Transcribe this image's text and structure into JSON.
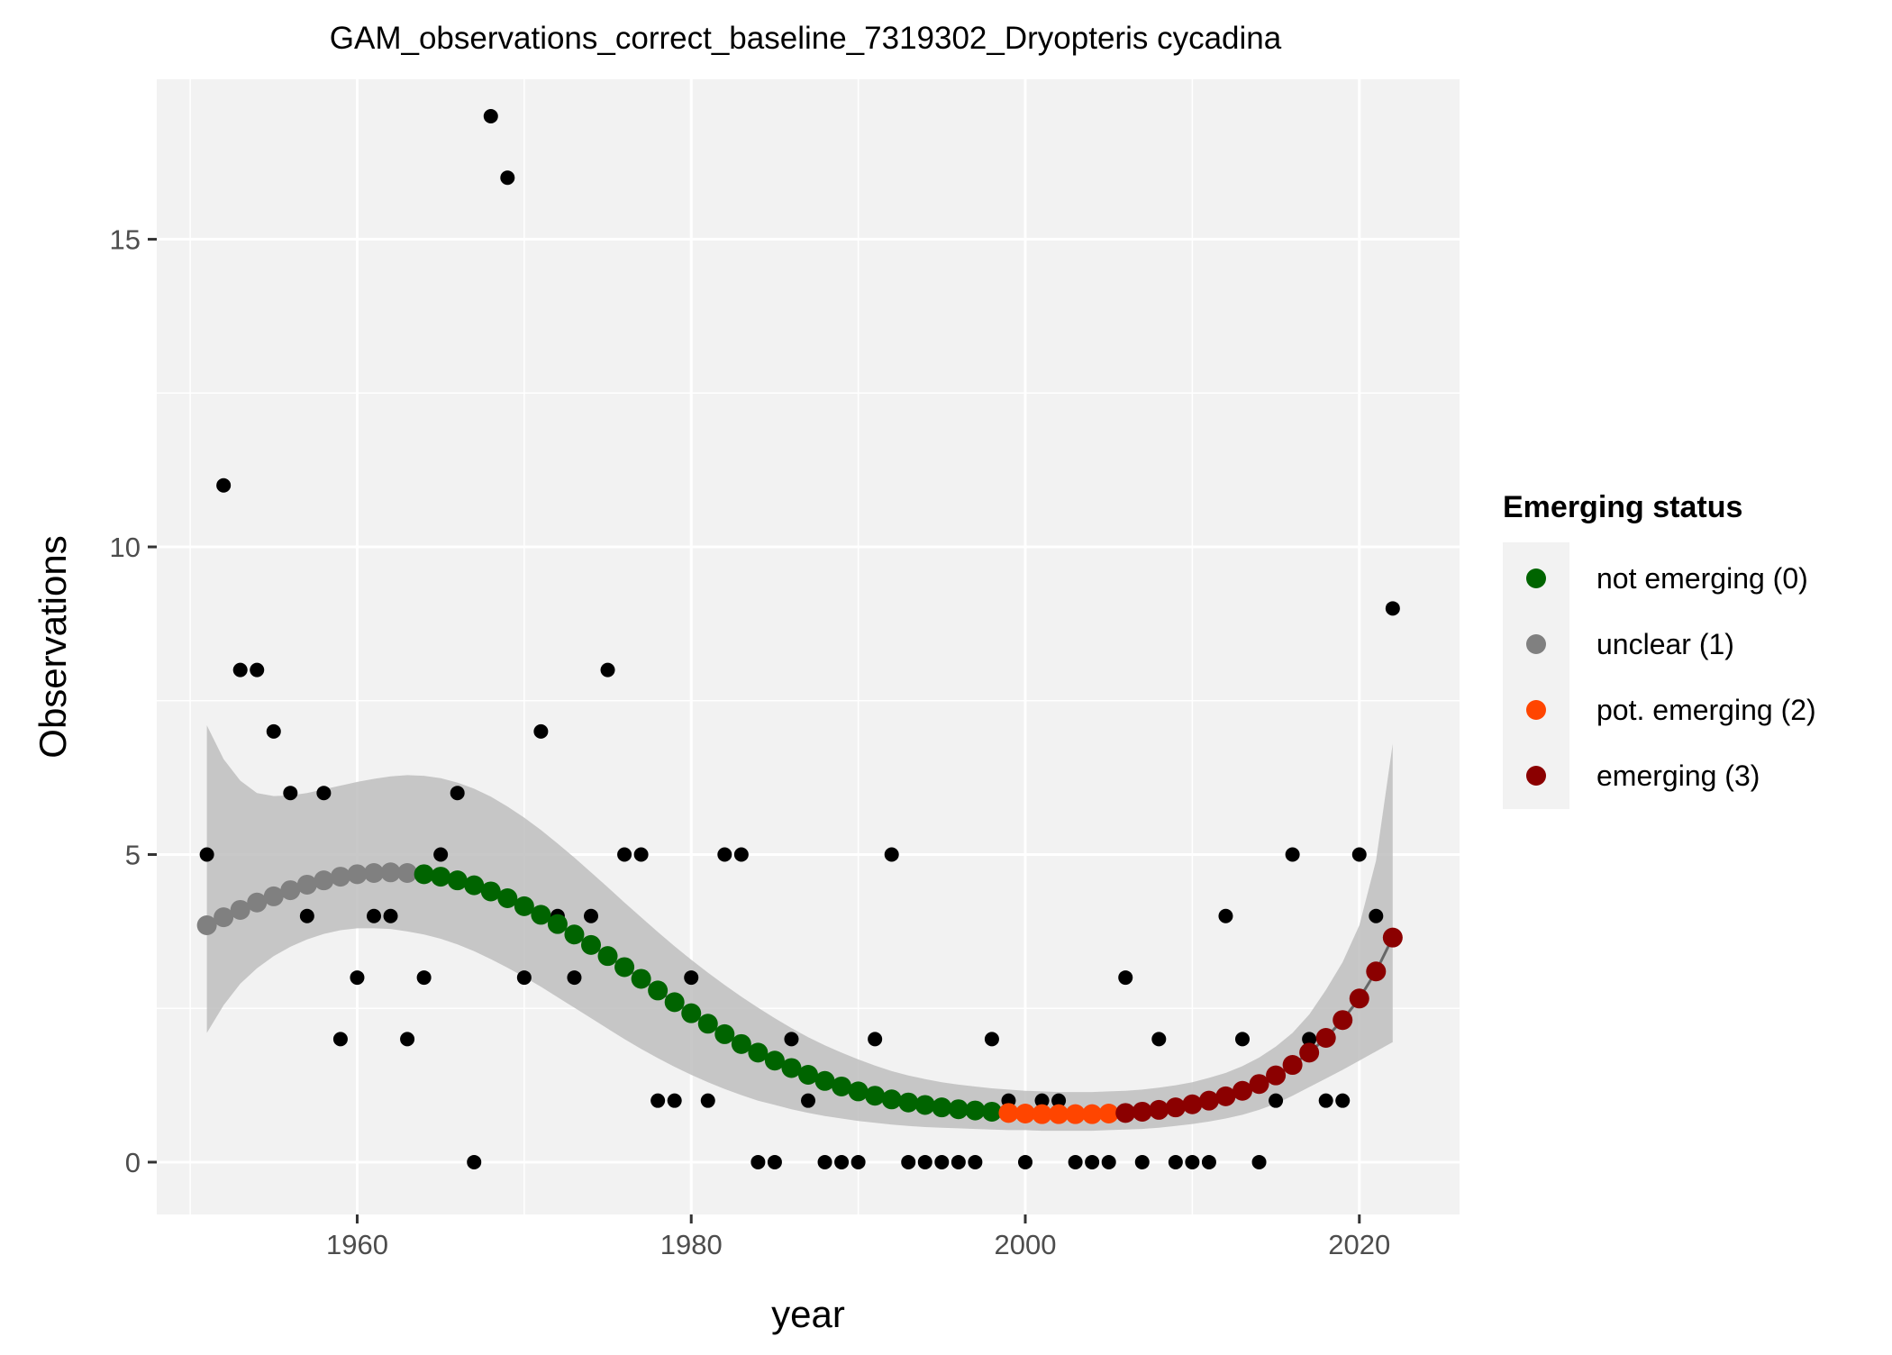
{
  "chart_data": {
    "type": "scatter",
    "title": "GAM_observations_correct_baseline_7319302_Dryopteris cycadina",
    "xlabel": "year",
    "ylabel": "Observations",
    "xlim": [
      1948,
      2026
    ],
    "ylim": [
      -0.85,
      17.6
    ],
    "x_ticks": [
      1960,
      1980,
      2000,
      2020
    ],
    "y_ticks": [
      0,
      5,
      10,
      15
    ],
    "x_minor_ticks": [
      1950,
      1970,
      1990,
      2010
    ],
    "y_minor_ticks": [
      2.5,
      7.5,
      12.5
    ],
    "grid": true,
    "panel_background": "#f2f2f2",
    "legend": {
      "title": "Emerging status",
      "position": "right",
      "entries": [
        {
          "label": "not emerging (0)",
          "color": "#006400"
        },
        {
          "label": "unclear (1)",
          "color": "#808080"
        },
        {
          "label": "pot. emerging (2)",
          "color": "#ff4500"
        },
        {
          "label": "emerging (3)",
          "color": "#8b0000"
        }
      ]
    },
    "series": [
      {
        "role": "observations",
        "color": "#000000",
        "x": [
          1951,
          1952,
          1953,
          1954,
          1955,
          1956,
          1957,
          1958,
          1959,
          1960,
          1961,
          1962,
          1963,
          1964,
          1965,
          1966,
          1967,
          1968,
          1969,
          1970,
          1971,
          1972,
          1973,
          1974,
          1975,
          1976,
          1977,
          1978,
          1979,
          1980,
          1981,
          1982,
          1983,
          1984,
          1985,
          1986,
          1987,
          1988,
          1989,
          1990,
          1991,
          1992,
          1993,
          1994,
          1995,
          1996,
          1997,
          1998,
          1999,
          2000,
          2001,
          2002,
          2003,
          2004,
          2005,
          2006,
          2007,
          2008,
          2009,
          2010,
          2011,
          2012,
          2013,
          2014,
          2015,
          2016,
          2017,
          2018,
          2019,
          2020,
          2021,
          2022
        ],
        "y": [
          5,
          11,
          8,
          8,
          7,
          6,
          4,
          6,
          2,
          3,
          4,
          4,
          2,
          3,
          5,
          6,
          0,
          17,
          16,
          3,
          7,
          4,
          3,
          4,
          8,
          5,
          5,
          1,
          1,
          3,
          1,
          5,
          5,
          0,
          0,
          2,
          1,
          0,
          0,
          0,
          2,
          5,
          0,
          0,
          0,
          0,
          0,
          2,
          1,
          0,
          1,
          1,
          0,
          0,
          0,
          3,
          0,
          2,
          0,
          0,
          0,
          4,
          2,
          0,
          1,
          5,
          2,
          1,
          1,
          5,
          4,
          9
        ]
      },
      {
        "role": "gam-fit",
        "x": [
          1951,
          1952,
          1953,
          1954,
          1955,
          1956,
          1957,
          1958,
          1959,
          1960,
          1961,
          1962,
          1963,
          1964,
          1965,
          1966,
          1967,
          1968,
          1969,
          1970,
          1971,
          1972,
          1973,
          1974,
          1975,
          1976,
          1977,
          1978,
          1979,
          1980,
          1981,
          1982,
          1983,
          1984,
          1985,
          1986,
          1987,
          1988,
          1989,
          1990,
          1991,
          1992,
          1993,
          1994,
          1995,
          1996,
          1997,
          1998,
          1999,
          2000,
          2001,
          2002,
          2003,
          2004,
          2005,
          2006,
          2007,
          2008,
          2009,
          2010,
          2011,
          2012,
          2013,
          2014,
          2015,
          2016,
          2017,
          2018,
          2019,
          2020,
          2021,
          2022
        ],
        "y": [
          3.85,
          3.98,
          4.1,
          4.22,
          4.32,
          4.42,
          4.51,
          4.58,
          4.64,
          4.68,
          4.7,
          4.71,
          4.7,
          4.68,
          4.64,
          4.58,
          4.5,
          4.4,
          4.29,
          4.16,
          4.02,
          3.87,
          3.7,
          3.53,
          3.35,
          3.17,
          2.98,
          2.79,
          2.6,
          2.42,
          2.25,
          2.08,
          1.92,
          1.78,
          1.65,
          1.53,
          1.42,
          1.32,
          1.23,
          1.15,
          1.08,
          1.02,
          0.97,
          0.93,
          0.89,
          0.86,
          0.84,
          0.82,
          0.8,
          0.79,
          0.78,
          0.78,
          0.78,
          0.78,
          0.79,
          0.8,
          0.82,
          0.85,
          0.89,
          0.94,
          1.0,
          1.07,
          1.16,
          1.27,
          1.41,
          1.58,
          1.78,
          2.02,
          2.31,
          2.66,
          3.1,
          3.65
        ],
        "ci_lower": [
          2.1,
          2.55,
          2.9,
          3.15,
          3.35,
          3.5,
          3.62,
          3.71,
          3.77,
          3.8,
          3.8,
          3.79,
          3.75,
          3.7,
          3.63,
          3.54,
          3.43,
          3.3,
          3.16,
          3.01,
          2.85,
          2.68,
          2.51,
          2.34,
          2.17,
          2.0,
          1.84,
          1.69,
          1.55,
          1.42,
          1.3,
          1.19,
          1.09,
          1.0,
          0.93,
          0.86,
          0.8,
          0.75,
          0.71,
          0.67,
          0.64,
          0.61,
          0.59,
          0.57,
          0.56,
          0.55,
          0.54,
          0.53,
          0.52,
          0.52,
          0.51,
          0.51,
          0.51,
          0.51,
          0.52,
          0.53,
          0.54,
          0.56,
          0.59,
          0.62,
          0.66,
          0.71,
          0.77,
          0.85,
          0.95,
          1.08,
          1.22,
          1.36,
          1.5,
          1.65,
          1.8,
          1.95
        ],
        "ci_upper": [
          7.1,
          6.55,
          6.2,
          6.0,
          5.95,
          5.96,
          6.0,
          6.06,
          6.12,
          6.18,
          6.23,
          6.27,
          6.29,
          6.28,
          6.24,
          6.17,
          6.07,
          5.94,
          5.78,
          5.6,
          5.4,
          5.18,
          4.95,
          4.71,
          4.47,
          4.22,
          3.98,
          3.74,
          3.51,
          3.29,
          3.08,
          2.88,
          2.69,
          2.51,
          2.34,
          2.18,
          2.03,
          1.9,
          1.78,
          1.67,
          1.57,
          1.48,
          1.41,
          1.35,
          1.3,
          1.26,
          1.23,
          1.2,
          1.18,
          1.16,
          1.15,
          1.14,
          1.14,
          1.14,
          1.15,
          1.16,
          1.18,
          1.21,
          1.25,
          1.3,
          1.37,
          1.45,
          1.56,
          1.7,
          1.88,
          2.1,
          2.4,
          2.8,
          3.25,
          3.85,
          4.9,
          6.8
        ]
      }
    ],
    "emerging_status": [
      {
        "status": "unclear (1)",
        "color": "#808080",
        "x_from": 1951,
        "x_to": 1963
      },
      {
        "status": "not emerging (0)",
        "color": "#006400",
        "x_from": 1964,
        "x_to": 1998
      },
      {
        "status": "pot. emerging (2)",
        "color": "#ff4500",
        "x_from": 1999,
        "x_to": 2005
      },
      {
        "status": "emerging (3)",
        "color": "#8b0000",
        "x_from": 2006,
        "x_to": 2022
      }
    ]
  }
}
